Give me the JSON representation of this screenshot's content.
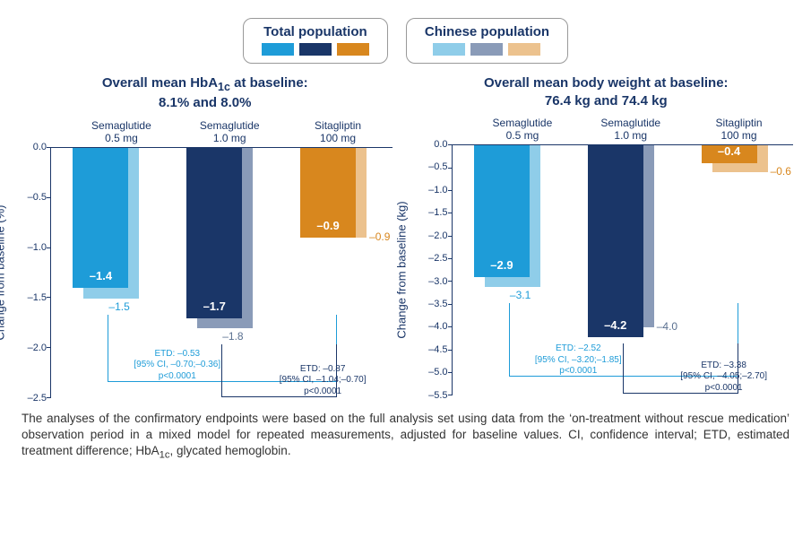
{
  "legend": {
    "total": {
      "title": "Total population",
      "colors": [
        "#1e9cd8",
        "#1a3668",
        "#d8871e"
      ]
    },
    "chinese": {
      "title": "Chinese population",
      "colors": [
        "#8fcde9",
        "#8a9bb8",
        "#ecc28e"
      ]
    }
  },
  "left_chart": {
    "title_line1": "Overall mean HbA",
    "title_sub": "1c",
    "title_line1_after": " at baseline:",
    "title_line2": "8.1% and 8.0%",
    "y_label": "Change from baseline (%)",
    "y_min": -2.5,
    "y_max": 0.0,
    "y_step": 0.5,
    "y_ticks": [
      "0.0",
      "–0.5",
      "–1.0",
      "–1.5",
      "–2.0",
      "–2.5"
    ],
    "groups": [
      {
        "label_line1": "Semaglutide",
        "label_line2": "0.5 mg",
        "total_value": -1.4,
        "total_value_txt": "–1.4",
        "chinese_value": -1.5,
        "chinese_value_txt": "–1.5",
        "total_color": "#1e9cd8",
        "chinese_color": "#8fcde9",
        "back_label_pos": "below"
      },
      {
        "label_line1": "Semaglutide",
        "label_line2": "1.0 mg",
        "total_value": -1.7,
        "total_value_txt": "–1.7",
        "chinese_value": -1.8,
        "chinese_value_txt": "–1.8",
        "total_color": "#1a3668",
        "chinese_color": "#8a9bb8",
        "back_label_pos": "below"
      },
      {
        "label_line1": "Sitagliptin",
        "label_line2": "100 mg",
        "total_value": -0.9,
        "total_value_txt": "–0.9",
        "chinese_value": -0.9,
        "chinese_value_txt": "–0.9",
        "total_color": "#d8871e",
        "chinese_color": "#ecc28e",
        "back_label_pos": "right"
      }
    ],
    "etd": [
      {
        "lines": [
          "ETD: –0.53",
          "[95% CI, –0.70;–0.36]",
          "p<0.0001"
        ],
        "from_group": 0,
        "to_group": 2,
        "depth": 0.93,
        "color": "#1e9cd8"
      },
      {
        "lines": [
          "ETD: –0.87",
          "[95% CI, –1.04;–0.70]",
          "p<0.0001"
        ],
        "from_group": 1,
        "to_group": 2,
        "depth": 0.99,
        "color": "#1a3668"
      }
    ]
  },
  "right_chart": {
    "title_line1": "Overall mean body weight at baseline:",
    "title_line2": "76.4 kg and 74.4 kg",
    "y_label": "Change from baseline (kg)",
    "y_min": -5.5,
    "y_max": 0.0,
    "y_step": 0.5,
    "y_ticks": [
      "0.0",
      "–0.5",
      "–1.0",
      "–1.5",
      "–2.0",
      "–2.5",
      "–3.0",
      "–3.5",
      "–4.0",
      "–4.5",
      "–5.0",
      "–5.5"
    ],
    "groups": [
      {
        "label_line1": "Semaglutide",
        "label_line2": "0.5 mg",
        "total_value": -2.9,
        "total_value_txt": "–2.9",
        "chinese_value": -3.1,
        "chinese_value_txt": "–3.1",
        "total_color": "#1e9cd8",
        "chinese_color": "#8fcde9",
        "back_label_pos": "below"
      },
      {
        "label_line1": "Semaglutide",
        "label_line2": "1.0 mg",
        "total_value": -4.2,
        "total_value_txt": "–4.2",
        "chinese_value": -4.0,
        "chinese_value_txt": "–4.0",
        "total_color": "#1a3668",
        "chinese_color": "#8a9bb8",
        "back_label_pos": "right"
      },
      {
        "label_line1": "Sitagliptin",
        "label_line2": "100 mg",
        "total_value": -0.4,
        "total_value_txt": "–0.4",
        "chinese_value": -0.6,
        "chinese_value_txt": "–0.6",
        "total_color": "#d8871e",
        "chinese_color": "#ecc28e",
        "back_label_pos": "right"
      }
    ],
    "etd": [
      {
        "lines": [
          "ETD: –2.52",
          "[95% CI, –3.20;–1.85]",
          "p<0.0001"
        ],
        "from_group": 0,
        "to_group": 2,
        "depth": 0.92,
        "color": "#1e9cd8"
      },
      {
        "lines": [
          "ETD: –3.38",
          "[95% CI, –4.05;–2.70]",
          "p<0.0001"
        ],
        "from_group": 1,
        "to_group": 2,
        "depth": 0.985,
        "color": "#1a3668"
      }
    ]
  },
  "footnote_pre": "The analyses of the confirmatory endpoints were based on the full analysis set using data from the ‘on-treatment without rescue medication’ observation period in a mixed model for repeated measurements, adjusted for baseline values. CI, confidence interval; ETD, estimated treatment difference; HbA",
  "footnote_sub": "1c",
  "footnote_post": ", glycated hemoglobin."
}
